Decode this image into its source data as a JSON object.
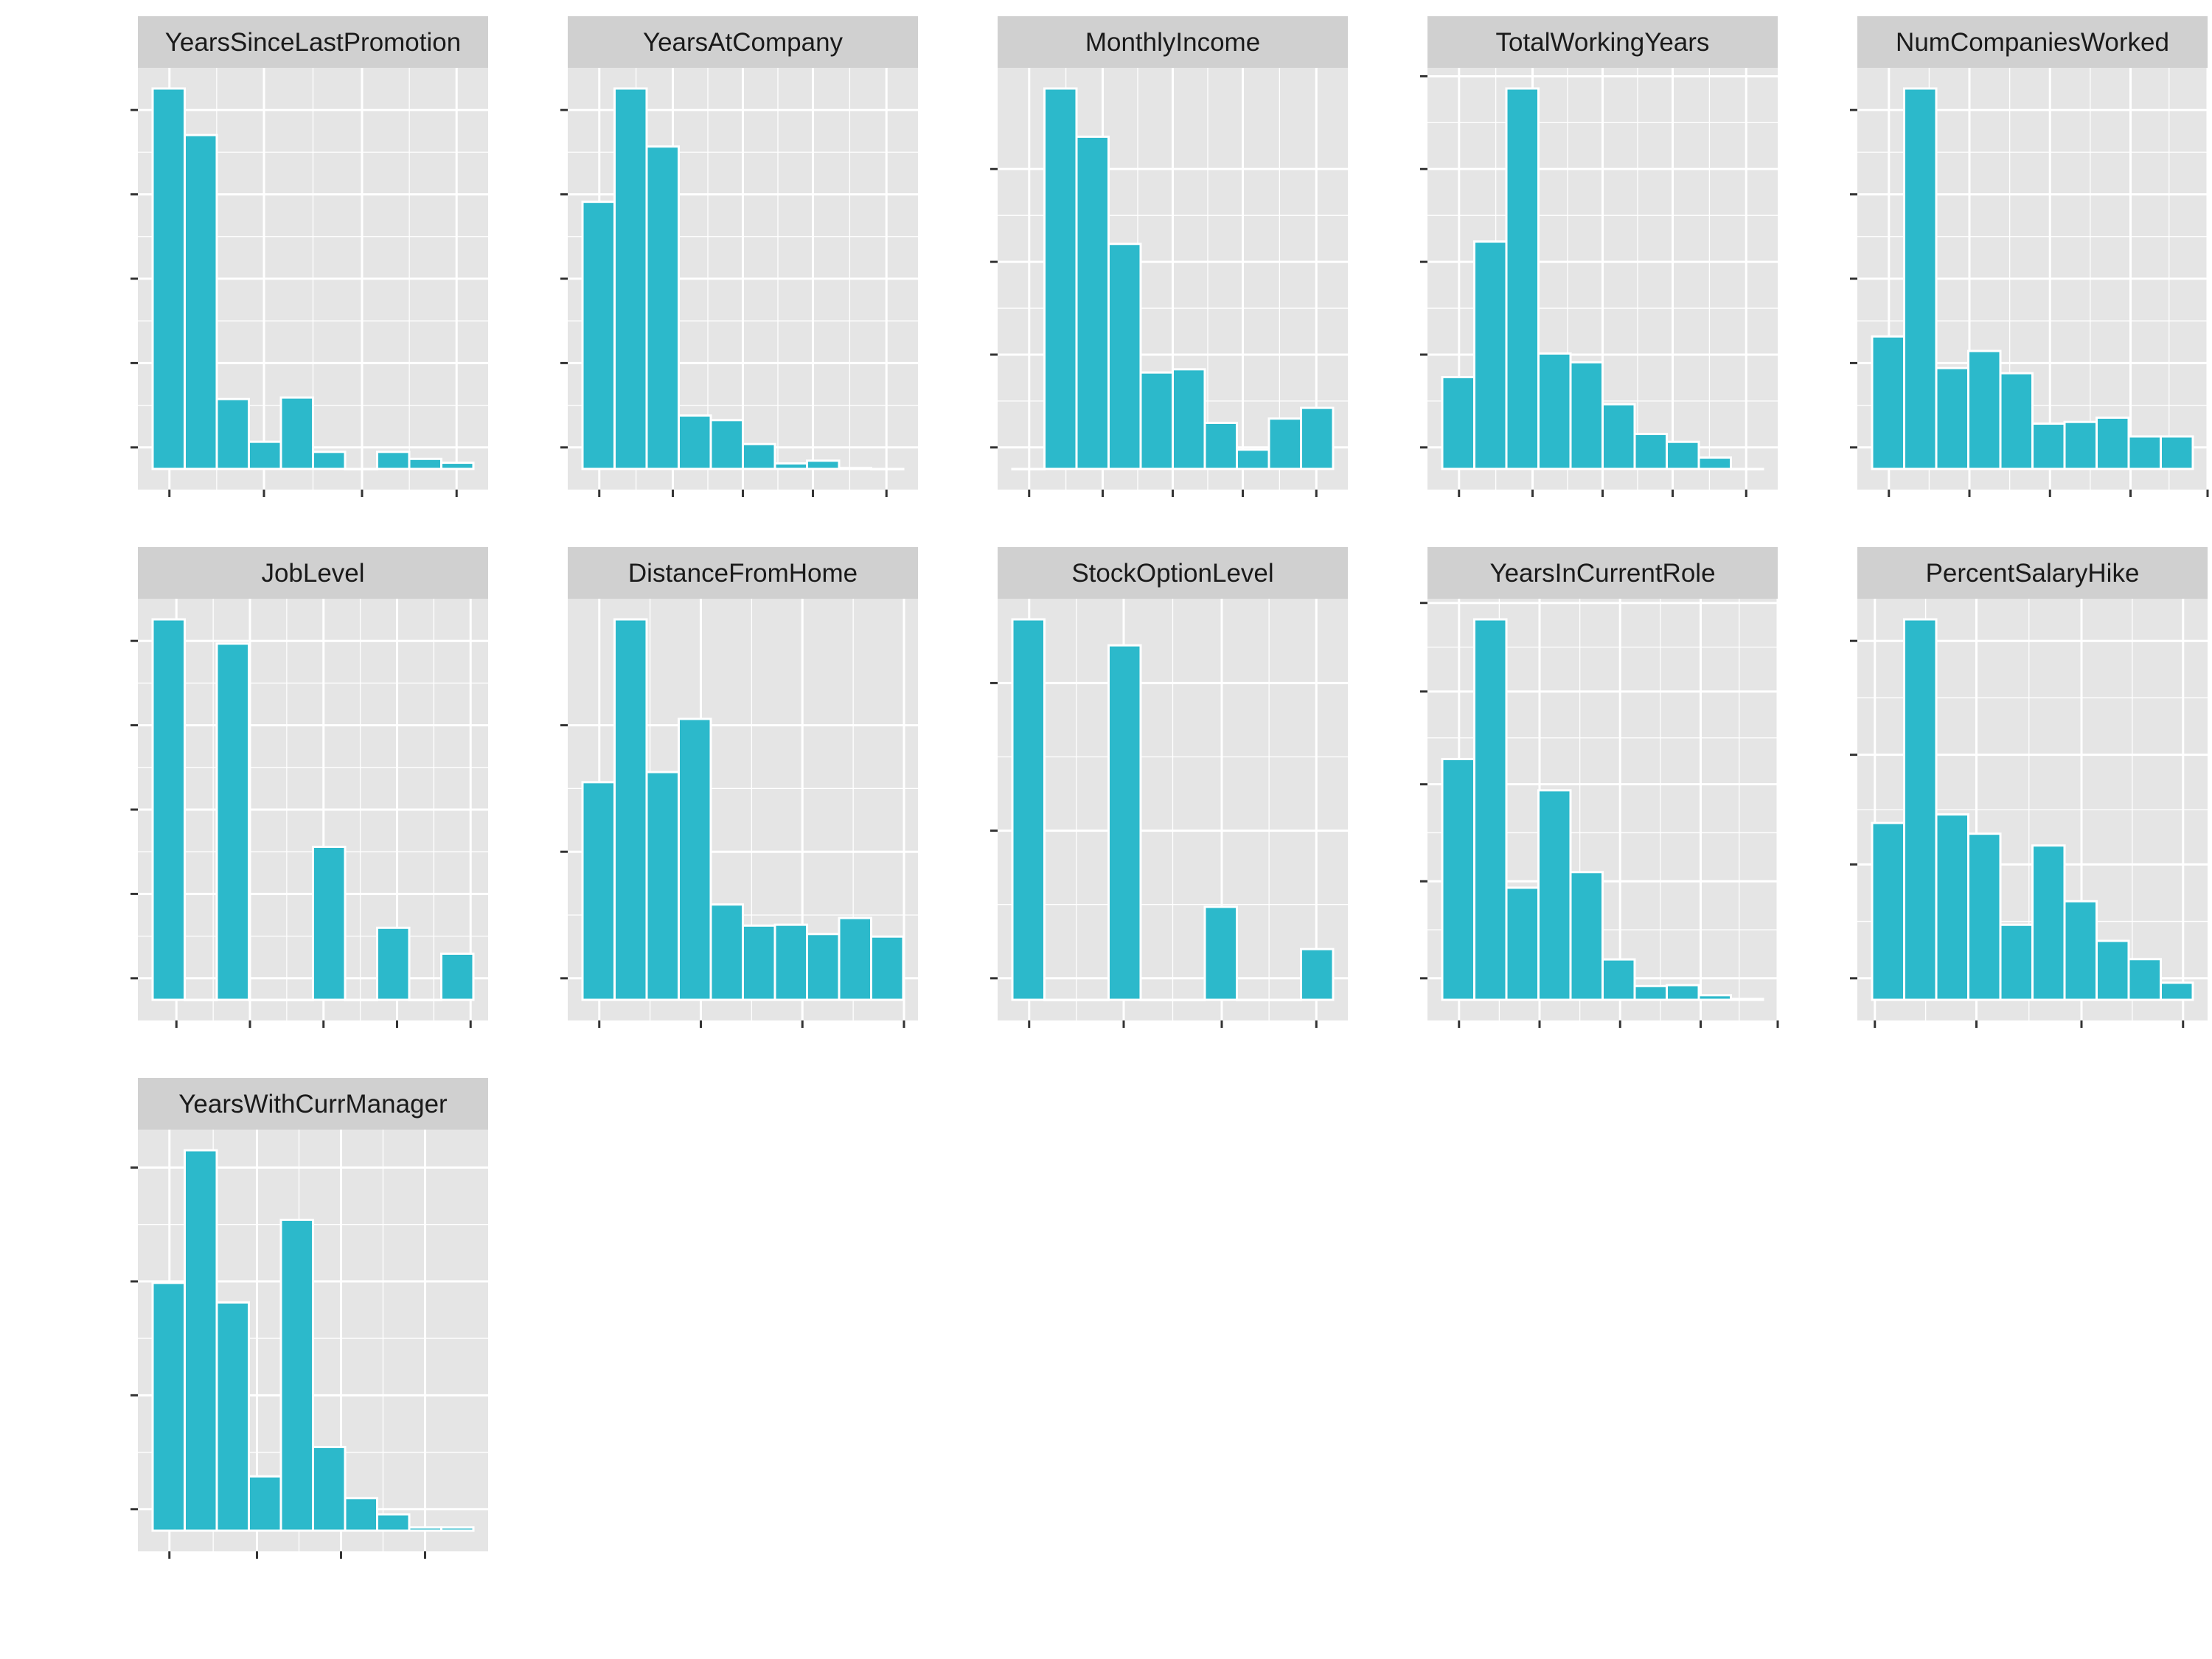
{
  "colors": {
    "background": "#ffffff",
    "panel": "#e5e5e5",
    "grid": "#ffffff",
    "strip": "#d0d0d0",
    "bar_fill": "#2cb9cb",
    "bar_stroke": "#ffffff",
    "tick": "#333333",
    "strip_text": "#1a1a1a"
  },
  "chart_data": [
    {
      "type": "bar",
      "title": "YearsSinceLastPromotion",
      "values": [
        490,
        430,
        90,
        35,
        92,
        22,
        0,
        22,
        13,
        8
      ],
      "ylim": [
        0,
        490
      ]
    },
    {
      "type": "bar",
      "title": "YearsAtCompany",
      "values": [
        290,
        413,
        350,
        58,
        53,
        27,
        6,
        9,
        1,
        0
      ],
      "ylim": [
        0,
        413
      ]
    },
    {
      "type": "bar",
      "title": "MonthlyIncome",
      "values": [
        0,
        355,
        310,
        210,
        90,
        93,
        43,
        18,
        47,
        57
      ],
      "ylim": [
        0,
        355
      ]
    },
    {
      "type": "bar",
      "title": "TotalWorkingYears",
      "values": [
        105,
        260,
        435,
        132,
        122,
        74,
        40,
        31,
        13,
        0
      ],
      "ylim": [
        0,
        435
      ]
    },
    {
      "type": "bar",
      "title": "NumCompaniesWorked",
      "values": [
        155,
        445,
        118,
        138,
        112,
        53,
        55,
        60,
        38,
        38
      ],
      "ylim": [
        0,
        445
      ]
    },
    {
      "type": "bar",
      "title": "JobLevel",
      "values": [
        470,
        0,
        440,
        0,
        0,
        189,
        0,
        89,
        0,
        57
      ],
      "ylim": [
        0,
        470
      ]
    },
    {
      "type": "bar",
      "title": "DistanceFromHome",
      "values": [
        258,
        451,
        270,
        333,
        113,
        88,
        89,
        78,
        97,
        75
      ],
      "ylim": [
        0,
        451
      ]
    },
    {
      "type": "bar",
      "title": "StockOptionLevel",
      "values": [
        630,
        0,
        0,
        587,
        0,
        0,
        154,
        0,
        0,
        84
      ],
      "ylim": [
        0,
        630
      ]
    },
    {
      "type": "bar",
      "title": "YearsInCurrentRole",
      "values": [
        262,
        414,
        122,
        228,
        139,
        44,
        15,
        16,
        5,
        1
      ],
      "ylim": [
        0,
        414
      ]
    },
    {
      "type": "bar",
      "title": "PercentSalaryHike",
      "values": [
        165,
        355,
        173,
        155,
        70,
        144,
        92,
        55,
        38,
        16
      ],
      "ylim": [
        0,
        355
      ]
    },
    {
      "type": "bar",
      "title": "YearsWithCurrManager",
      "values": [
        228,
        350,
        210,
        50,
        286,
        77,
        30,
        15,
        3,
        3
      ],
      "ylim": [
        0,
        350
      ]
    }
  ]
}
